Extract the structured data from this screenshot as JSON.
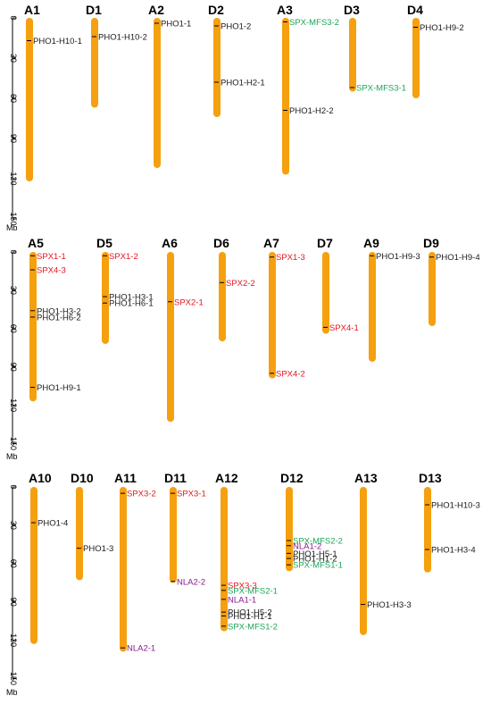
{
  "unit": "Mb",
  "axis_ticks": [
    0,
    30,
    60,
    90,
    120,
    150
  ],
  "colors": {
    "chromosome": "#f5a00f",
    "black": "#1a1a1a",
    "red": "#e8141c",
    "green": "#1aa55a",
    "purple": "#8a1a8c"
  },
  "rows": [
    {
      "chromosomes": [
        {
          "name": "A1",
          "length": 122,
          "genes": [
            {
              "name": "PHO1-H10-1",
              "pos": 17,
              "color": "black"
            }
          ]
        },
        {
          "name": "D1",
          "length": 67,
          "genes": [
            {
              "name": "PHO1-H10-2",
              "pos": 14,
              "color": "black"
            }
          ]
        },
        {
          "name": "A2",
          "length": 112,
          "genes": [
            {
              "name": "PHO1-1",
              "pos": 4,
              "color": "black"
            }
          ]
        },
        {
          "name": "D2",
          "length": 74,
          "genes": [
            {
              "name": "PHO1-2",
              "pos": 6,
              "color": "black"
            },
            {
              "name": "PHO1-H2-1",
              "pos": 48,
              "color": "black"
            }
          ]
        },
        {
          "name": "A3",
          "length": 117,
          "genes": [
            {
              "name": "SPX-MFS3-2",
              "pos": 3,
              "color": "green"
            },
            {
              "name": "PHO1-H2-2",
              "pos": 69,
              "color": "black"
            }
          ]
        },
        {
          "name": "D3",
          "length": 55,
          "genes": [
            {
              "name": "SPX-MFS3-1",
              "pos": 52,
              "color": "green"
            }
          ]
        },
        {
          "name": "D4",
          "length": 60,
          "genes": [
            {
              "name": "PHO1-H9-2",
              "pos": 7,
              "color": "black"
            }
          ]
        }
      ]
    },
    {
      "chromosomes": [
        {
          "name": "A5",
          "length": 117,
          "genes": [
            {
              "name": "SPX1-1",
              "pos": 3,
              "color": "red"
            },
            {
              "name": "SPX4-3",
              "pos": 14,
              "color": "red"
            },
            {
              "name": "PHO1-H3-2",
              "pos": 46,
              "color": "black"
            },
            {
              "name": "PHO1-H6-2",
              "pos": 51,
              "color": "black"
            },
            {
              "name": "PHO1-H9-1",
              "pos": 106,
              "color": "black"
            }
          ]
        },
        {
          "name": "D5",
          "length": 72,
          "genes": [
            {
              "name": "SPX1-2",
              "pos": 3,
              "color": "red"
            },
            {
              "name": "PHO1-H3-1",
              "pos": 35,
              "color": "black"
            },
            {
              "name": "PHO1-H6-1",
              "pos": 40,
              "color": "black"
            }
          ]
        },
        {
          "name": "A6",
          "length": 133,
          "genes": [
            {
              "name": "SPX2-1",
              "pos": 39,
              "color": "red"
            }
          ]
        },
        {
          "name": "D6",
          "length": 70,
          "genes": [
            {
              "name": "SPX2-2",
              "pos": 24,
              "color": "red"
            }
          ]
        },
        {
          "name": "A7",
          "length": 99,
          "genes": [
            {
              "name": "SPX1-3",
              "pos": 4,
              "color": "red"
            },
            {
              "name": "SPX4-2",
              "pos": 95,
              "color": "red"
            }
          ]
        },
        {
          "name": "D7",
          "length": 64,
          "genes": [
            {
              "name": "SPX4-1",
              "pos": 59,
              "color": "red"
            }
          ]
        },
        {
          "name": "A9",
          "length": 86,
          "genes": [
            {
              "name": "PHO1-H9-3",
              "pos": 3,
              "color": "black"
            }
          ]
        },
        {
          "name": "D9",
          "length": 58,
          "genes": [
            {
              "name": "PHO1-H9-4",
              "pos": 4,
              "color": "black"
            }
          ]
        }
      ]
    },
    {
      "chromosomes": [
        {
          "name": "A10",
          "length": 123,
          "genes": [
            {
              "name": "PHO1-4",
              "pos": 28,
              "color": "black"
            }
          ]
        },
        {
          "name": "D10",
          "length": 73,
          "genes": [
            {
              "name": "PHO1-3",
              "pos": 48,
              "color": "black"
            }
          ]
        },
        {
          "name": "A11",
          "length": 129,
          "genes": [
            {
              "name": "SPX3-2",
              "pos": 5,
              "color": "red"
            },
            {
              "name": "NLA2-1",
              "pos": 126,
              "color": "purple"
            }
          ]
        },
        {
          "name": "D11",
          "length": 75,
          "genes": [
            {
              "name": "SPX3-1",
              "pos": 5,
              "color": "red"
            },
            {
              "name": "NLA2-2",
              "pos": 74,
              "color": "purple"
            }
          ]
        },
        {
          "name": "A12",
          "length": 113,
          "genes": [
            {
              "name": "SPX3-3",
              "pos": 77,
              "color": "red"
            },
            {
              "name": "SPX-MFS2-1",
              "pos": 81,
              "color": "green"
            },
            {
              "name": "NLA1-1",
              "pos": 88,
              "color": "purple"
            },
            {
              "name": "PHO1-H5-2",
              "pos": 98,
              "color": "black"
            },
            {
              "name": "PHO1-H1-1",
              "pos": 101,
              "color": "black"
            },
            {
              "name": "SPX-MFS1-2",
              "pos": 109,
              "color": "green"
            }
          ]
        },
        {
          "name": "D12",
          "length": 66,
          "genes": [
            {
              "name": "SPX-MFS2-2",
              "pos": 42,
              "color": "green"
            },
            {
              "name": "NLA1-2",
              "pos": 46,
              "color": "purple"
            },
            {
              "name": "PHO1-H5-1",
              "pos": 52,
              "color": "black"
            },
            {
              "name": "PHO1-H1-2",
              "pos": 56,
              "color": "black"
            },
            {
              "name": "SPX-MFS1-1",
              "pos": 61,
              "color": "green"
            }
          ]
        },
        {
          "name": "A13",
          "length": 116,
          "genes": [
            {
              "name": "PHO1-H3-3",
              "pos": 92,
              "color": "black"
            }
          ]
        },
        {
          "name": "D13",
          "length": 67,
          "genes": [
            {
              "name": "PHO1-H10-3",
              "pos": 14,
              "color": "black"
            },
            {
              "name": "PHO1-H3-4",
              "pos": 49,
              "color": "black"
            }
          ]
        }
      ]
    }
  ]
}
